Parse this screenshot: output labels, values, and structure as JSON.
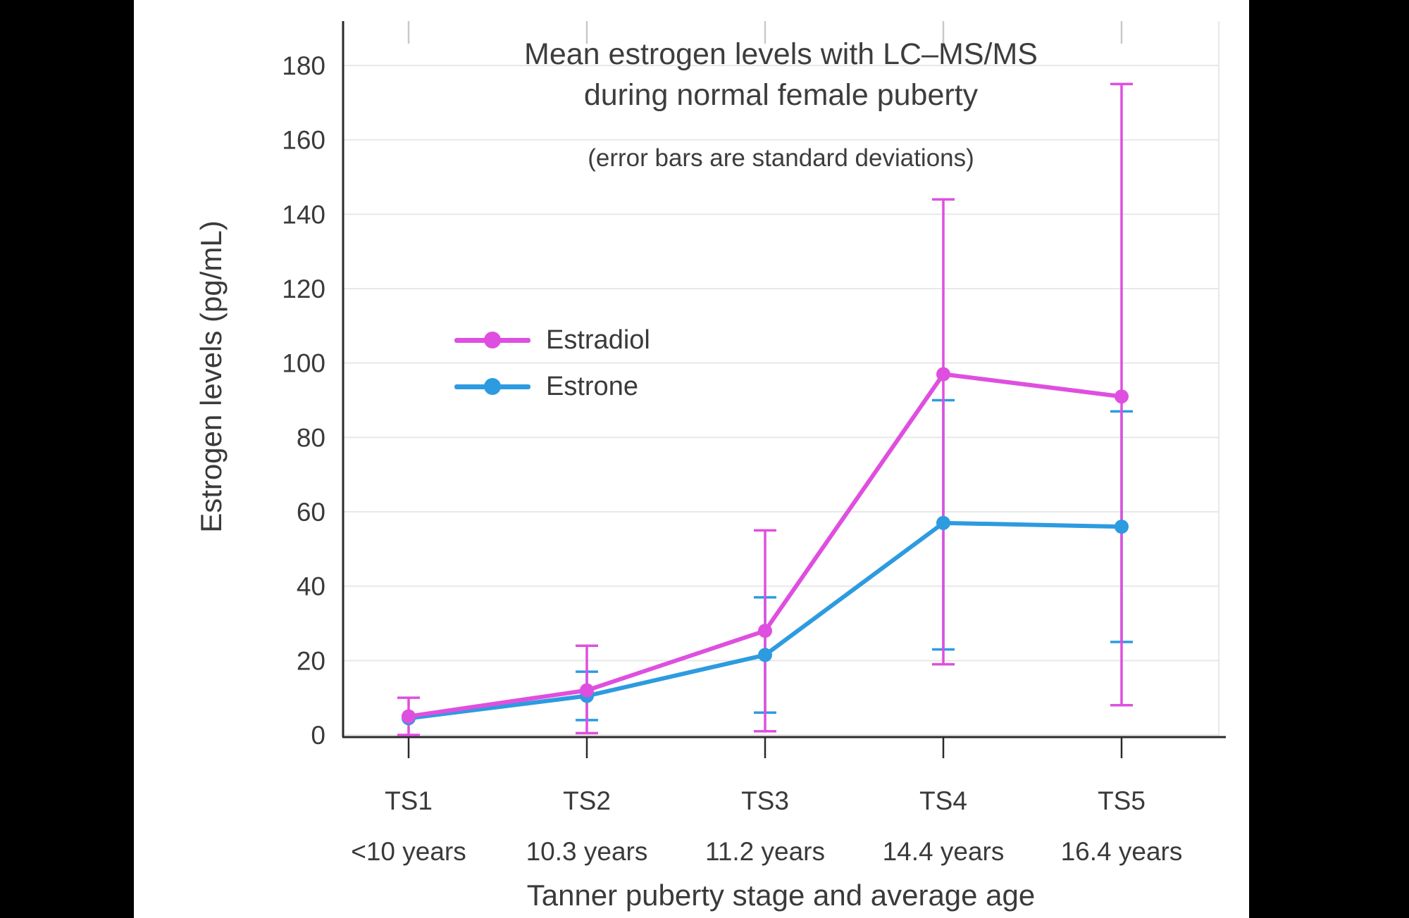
{
  "canvas": {
    "background": "#000000",
    "panel_background": "#ffffff",
    "text_color": "#3a3a3a",
    "grid_color": "#e8e8e8",
    "axis_color": "#2a2a2a",
    "top_tick_color": "#c9c9c9"
  },
  "chart_data": {
    "type": "line",
    "title_line1": "Mean estrogen levels with LC–MS/MS",
    "title_line2": "during normal female puberty",
    "subtitle": "(error bars are standard deviations)",
    "xlabel": "Tanner puberty stage and average age",
    "ylabel": "Estrogen levels (pg/mL)",
    "categories": [
      "TS1",
      "TS2",
      "TS3",
      "TS4",
      "TS5"
    ],
    "category_ages": [
      "<10 years",
      "10.3 years",
      "11.2 years",
      "14.4 years",
      "16.4 years"
    ],
    "yticks": [
      0,
      20,
      40,
      60,
      80,
      100,
      120,
      140,
      160,
      180
    ],
    "ylim": [
      0,
      185
    ],
    "grid": "horizontal",
    "legend": {
      "position": "inside-upper-left"
    },
    "series": [
      {
        "name": "Estradiol",
        "color": "#DF4FDF",
        "values": [
          5,
          12,
          28,
          97,
          91
        ],
        "err_upper": [
          10,
          24,
          55,
          144,
          175
        ],
        "err_lower": [
          0,
          0.5,
          1,
          19,
          8
        ]
      },
      {
        "name": "Estrone",
        "color": "#2D9BE0",
        "values": [
          4.5,
          10.5,
          21.5,
          57,
          56
        ],
        "err_upper": [
          null,
          17,
          37,
          90,
          87
        ],
        "err_lower": [
          null,
          4,
          6,
          23,
          25
        ]
      }
    ]
  }
}
